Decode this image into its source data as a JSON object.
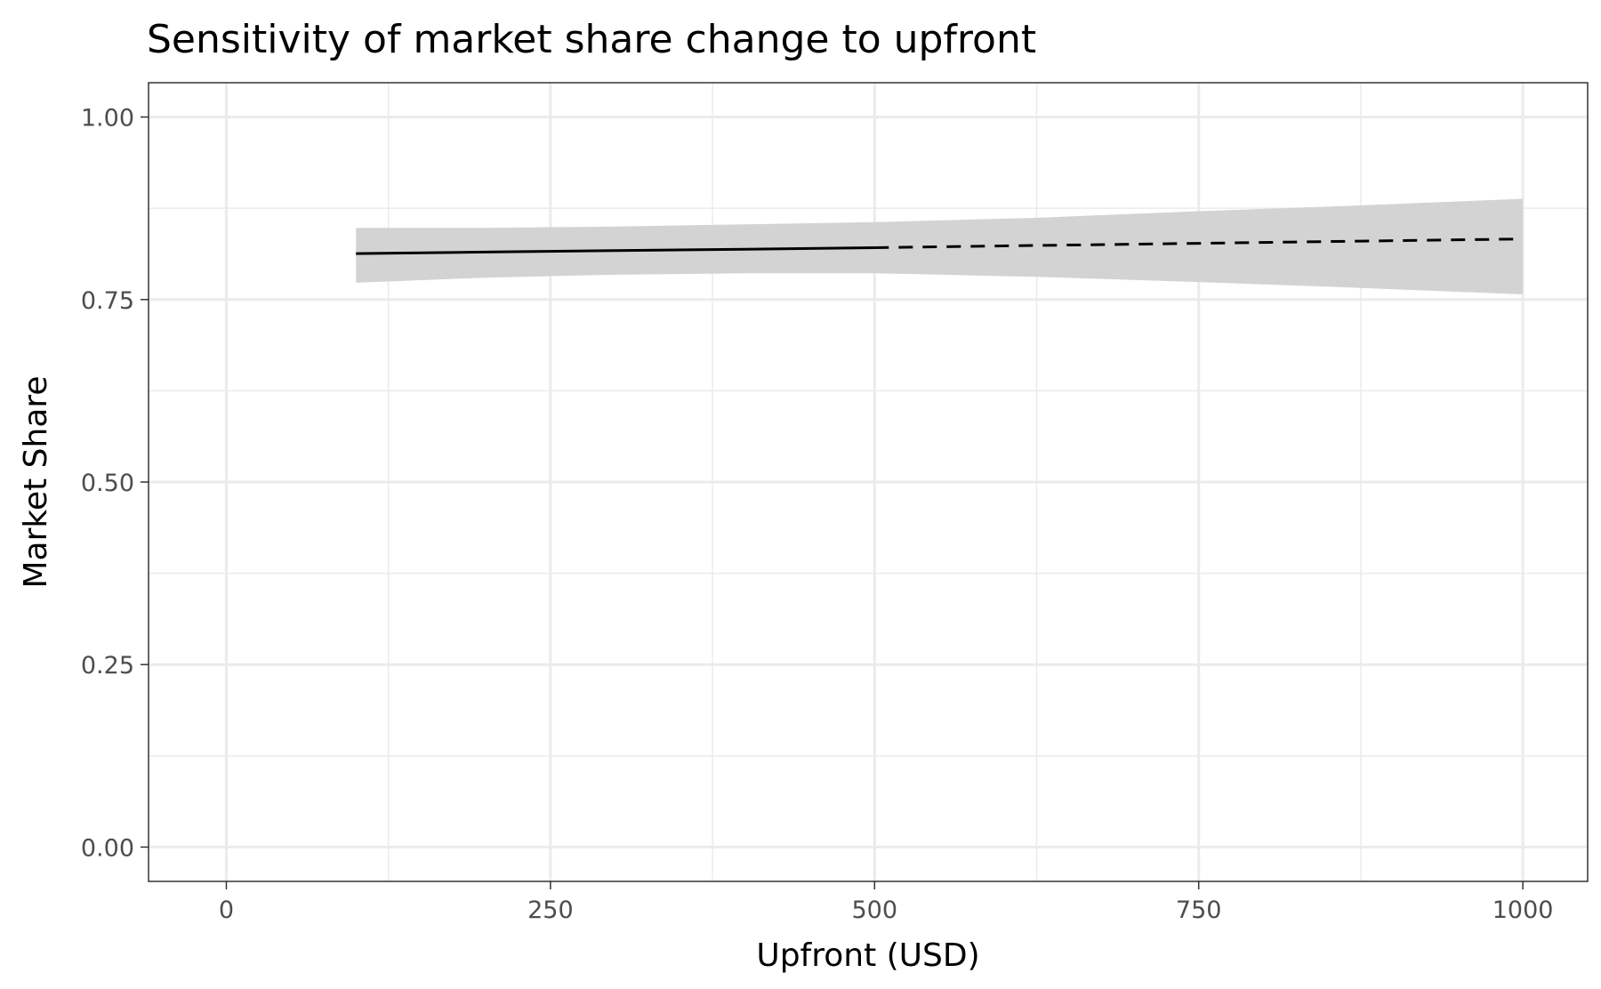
{
  "chart_data": {
    "type": "line",
    "title": "Sensitivity of market share change to upfront",
    "xlabel": "Upfront (USD)",
    "ylabel": "Market Share",
    "xlim": [
      -60,
      1050
    ],
    "ylim": [
      -0.047,
      1.047
    ],
    "x_ticks": [
      0,
      250,
      500,
      750,
      1000
    ],
    "x_tick_labels": [
      "0",
      "250",
      "500",
      "750",
      "1000"
    ],
    "y_ticks": [
      0,
      0.25,
      0.5,
      0.75,
      1.0
    ],
    "y_tick_labels": [
      "0.00",
      "0.25",
      "0.50",
      "0.75",
      "1.00"
    ],
    "grid": true,
    "series": [
      {
        "line_style": "solid",
        "color": "#000000",
        "x": [
          100,
          200,
          300,
          400,
          500
        ],
        "y": [
          0.813,
          0.815,
          0.817,
          0.819,
          0.821
        ]
      },
      {
        "line_style": "dashed",
        "color": "#000000",
        "x": [
          500,
          625,
          750,
          875,
          1000
        ],
        "y": [
          0.821,
          0.824,
          0.827,
          0.83,
          0.833
        ]
      }
    ],
    "confidence_band": {
      "color": "#d3d3d3",
      "x": [
        100,
        200,
        300,
        400,
        500,
        625,
        750,
        875,
        1000
      ],
      "lower": [
        0.773,
        0.78,
        0.784,
        0.786,
        0.786,
        0.781,
        0.774,
        0.766,
        0.757
      ],
      "upper": [
        0.848,
        0.848,
        0.85,
        0.853,
        0.856,
        0.862,
        0.871,
        0.879,
        0.888
      ]
    }
  }
}
